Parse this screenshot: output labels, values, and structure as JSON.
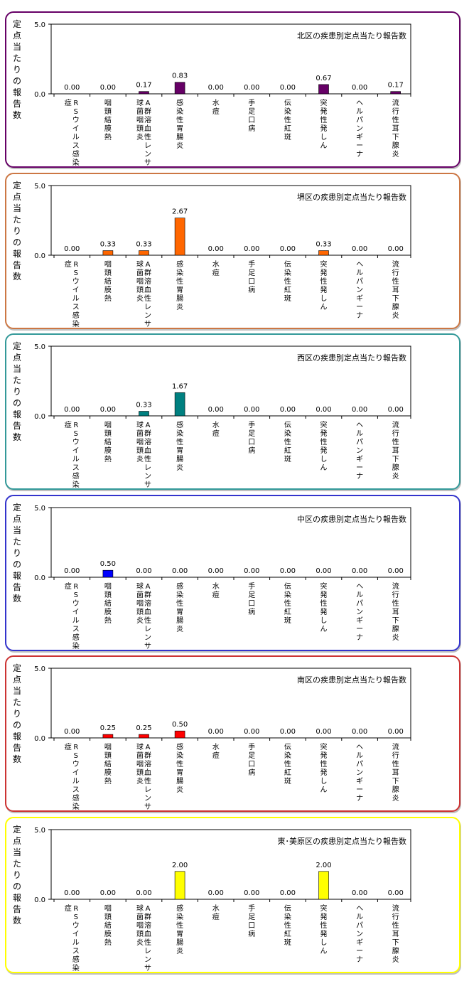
{
  "y_axis_label": "定点当たりの報告数",
  "chart_data": [
    {
      "type": "bar",
      "title": "北区の疾患別定点当たり報告数",
      "ylim": [
        0,
        5
      ],
      "yticks": [
        "0.0",
        "5.0"
      ],
      "categories": [
        "RSウイルス感染症",
        "咽頭結膜熱",
        "A群溶血性レンサ球菌咽頭炎",
        "感染性胃腸炎",
        "水痘",
        "手足口病",
        "伝染性紅斑",
        "突発性発しん",
        "ヘルパンギーナ",
        "流行性耳下腺炎"
      ],
      "values": [
        0,
        0,
        0.17,
        0.83,
        0,
        0,
        0,
        0.67,
        0,
        0.17
      ],
      "value_labels": [
        "0.00",
        "0.00",
        "0.17",
        "0.83",
        "0.00",
        "0.00",
        "0.00",
        "0.67",
        "0.00",
        "0.17"
      ],
      "bar_color": "#660066",
      "border_color": "#660066"
    },
    {
      "type": "bar",
      "title": "堺区の疾患別定点当たり報告数",
      "ylim": [
        0,
        5
      ],
      "yticks": [
        "0.0",
        "5.0"
      ],
      "categories": [
        "RSウイルス感染症",
        "咽頭結膜熱",
        "A群溶血性レンサ球菌咽頭炎",
        "感染性胃腸炎",
        "水痘",
        "手足口病",
        "伝染性紅斑",
        "突発性発しん",
        "ヘルパンギーナ",
        "流行性耳下腺炎"
      ],
      "values": [
        0,
        0.33,
        0.33,
        2.67,
        0,
        0,
        0,
        0.33,
        0,
        0
      ],
      "value_labels": [
        "0.00",
        "0.33",
        "0.33",
        "2.67",
        "0.00",
        "0.00",
        "0.00",
        "0.33",
        "0.00",
        "0.00"
      ],
      "bar_color": "#ff6600",
      "border_color": "#cc7744"
    },
    {
      "type": "bar",
      "title": "西区の疾患別定点当たり報告数",
      "ylim": [
        0,
        5
      ],
      "yticks": [
        "0.0",
        "5.0"
      ],
      "categories": [
        "RSウイルス感染症",
        "咽頭結膜熱",
        "A群溶血性レンサ球菌咽頭炎",
        "感染性胃腸炎",
        "水痘",
        "手足口病",
        "伝染性紅斑",
        "突発性発しん",
        "ヘルパンギーナ",
        "流行性耳下腺炎"
      ],
      "values": [
        0,
        0,
        0.33,
        1.67,
        0,
        0,
        0,
        0,
        0,
        0
      ],
      "value_labels": [
        "0.00",
        "0.00",
        "0.33",
        "1.67",
        "0.00",
        "0.00",
        "0.00",
        "0.00",
        "0.00",
        "0.00"
      ],
      "bar_color": "#008080",
      "border_color": "#339999"
    },
    {
      "type": "bar",
      "title": "中区の疾患別定点当たり報告数",
      "ylim": [
        0,
        5
      ],
      "yticks": [
        "0.0",
        "5.0"
      ],
      "categories": [
        "RSウイルス感染症",
        "咽頭結膜熱",
        "A群溶血性レンサ球菌咽頭炎",
        "感染性胃腸炎",
        "水痘",
        "手足口病",
        "伝染性紅斑",
        "突発性発しん",
        "ヘルパンギーナ",
        "流行性耳下腺炎"
      ],
      "values": [
        0,
        0.5,
        0,
        0,
        0,
        0,
        0,
        0,
        0,
        0
      ],
      "value_labels": [
        "0.00",
        "0.50",
        "0.00",
        "0.00",
        "0.00",
        "0.00",
        "0.00",
        "0.00",
        "0.00",
        "0.00"
      ],
      "bar_color": "#0000ff",
      "border_color": "#3333cc"
    },
    {
      "type": "bar",
      "title": "南区の疾患別定点当たり報告数",
      "ylim": [
        0,
        5
      ],
      "yticks": [
        "0.0",
        "5.0"
      ],
      "categories": [
        "RSウイルス感染症",
        "咽頭結膜熱",
        "A群溶血性レンサ球菌咽頭炎",
        "感染性胃腸炎",
        "水痘",
        "手足口病",
        "伝染性紅斑",
        "突発性発しん",
        "ヘルパンギーナ",
        "流行性耳下腺炎"
      ],
      "values": [
        0,
        0.25,
        0.25,
        0.5,
        0,
        0,
        0,
        0,
        0,
        0
      ],
      "value_labels": [
        "0.00",
        "0.25",
        "0.25",
        "0.50",
        "0.00",
        "0.00",
        "0.00",
        "0.00",
        "0.00",
        "0.00"
      ],
      "bar_color": "#ff0000",
      "border_color": "#cc3333"
    },
    {
      "type": "bar",
      "title": "東･美原区の疾患別定点当たり報告数",
      "ylim": [
        0,
        5
      ],
      "yticks": [
        "0.0",
        "5.0"
      ],
      "categories": [
        "RSウイルス感染症",
        "咽頭結膜熱",
        "A群溶血性レンサ球菌咽頭炎",
        "感染性胃腸炎",
        "水痘",
        "手足口病",
        "伝染性紅斑",
        "突発性発しん",
        "ヘルパンギーナ",
        "流行性耳下腺炎"
      ],
      "values": [
        0,
        0,
        0,
        2,
        0,
        0,
        0,
        2,
        0,
        0
      ],
      "value_labels": [
        "0.00",
        "0.00",
        "0.00",
        "2.00",
        "0.00",
        "0.00",
        "0.00",
        "2.00",
        "0.00",
        "0.00"
      ],
      "bar_color": "#ffff00",
      "border_color": "#ffff00"
    }
  ]
}
